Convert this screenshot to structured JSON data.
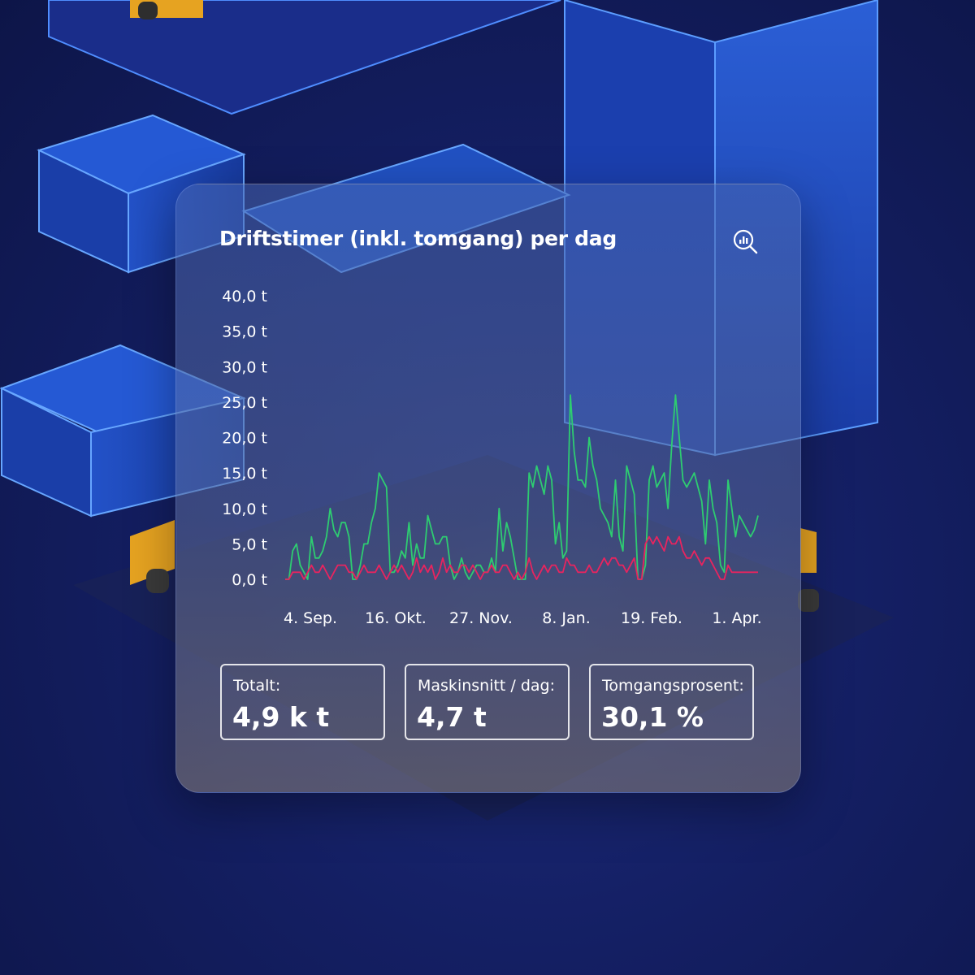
{
  "card": {
    "title": "Driftstimer (inkl. tomgang) per dag",
    "zoom_icon": "chart-magnifier-icon"
  },
  "chart_data": {
    "type": "line",
    "ylim": [
      0,
      40
    ],
    "yticks": [
      "0,0 t",
      "5,0 t",
      "10,0 t",
      "15,0 t",
      "20,0 t",
      "25,0 t",
      "30,0 t",
      "35,0 t",
      "40,0 t"
    ],
    "ytick_values": [
      0,
      5,
      10,
      15,
      20,
      25,
      30,
      35,
      40
    ],
    "xticks": [
      "4. Sep.",
      "16. Okt.",
      "27. Nov.",
      "8. Jan.",
      "19. Feb.",
      "1. Apr."
    ],
    "grid": false,
    "series": [
      {
        "color": "#2ecc71",
        "values": [
          0,
          0,
          4,
          5,
          2,
          1,
          0,
          6,
          3,
          3,
          4,
          6,
          10,
          7,
          6,
          8,
          8,
          6,
          0,
          0,
          2,
          5,
          5,
          8,
          10,
          15,
          14,
          13,
          1,
          1,
          2,
          4,
          3,
          8,
          2,
          5,
          3,
          3,
          9,
          7,
          5,
          5,
          6,
          6,
          2,
          0,
          1,
          3,
          1,
          0,
          1,
          2,
          2,
          1,
          1,
          3,
          1,
          10,
          4,
          8,
          6,
          3,
          0,
          0,
          0,
          15,
          13,
          16,
          14,
          12,
          16,
          14,
          5,
          8,
          3,
          4,
          26,
          18,
          14,
          14,
          13,
          20,
          16,
          14,
          10,
          9,
          8,
          6,
          14,
          6,
          4,
          16,
          14,
          12,
          0,
          0,
          2,
          14,
          16,
          13,
          14,
          15,
          10,
          19,
          26,
          20,
          14,
          13,
          14,
          15,
          13,
          11,
          5,
          14,
          10,
          8,
          2,
          1,
          14,
          10,
          6,
          9,
          8,
          7,
          6,
          7,
          9
        ]
      },
      {
        "color": "#e8245f",
        "values": [
          0,
          0,
          1,
          1,
          1,
          0,
          1,
          2,
          1,
          1,
          2,
          1,
          0,
          1,
          2,
          2,
          2,
          1,
          1,
          0,
          1,
          2,
          1,
          1,
          1,
          2,
          1,
          0,
          1,
          2,
          1,
          2,
          1,
          0,
          1,
          3,
          1,
          2,
          1,
          2,
          0,
          1,
          3,
          1,
          2,
          1,
          1,
          2,
          2,
          1,
          2,
          1,
          0,
          1,
          1,
          2,
          1,
          1,
          2,
          2,
          1,
          0,
          1,
          0,
          1,
          3,
          1,
          0,
          1,
          2,
          1,
          2,
          2,
          1,
          1,
          3,
          2,
          2,
          1,
          1,
          1,
          2,
          1,
          1,
          2,
          3,
          2,
          3,
          3,
          2,
          2,
          1,
          2,
          3,
          0,
          0,
          5,
          6,
          5,
          6,
          5,
          4,
          6,
          5,
          5,
          6,
          4,
          3,
          3,
          4,
          3,
          2,
          3,
          3,
          2,
          1,
          0,
          0,
          2,
          1,
          1,
          1,
          1,
          1,
          1,
          1,
          1
        ]
      }
    ]
  },
  "stats": [
    {
      "label": "Totalt:",
      "value": "4,9 k t"
    },
    {
      "label": "Maskinsnitt / dag:",
      "value": "4,7 t"
    },
    {
      "label": "Tomgangsprosent:",
      "value": "30,1 %"
    }
  ]
}
